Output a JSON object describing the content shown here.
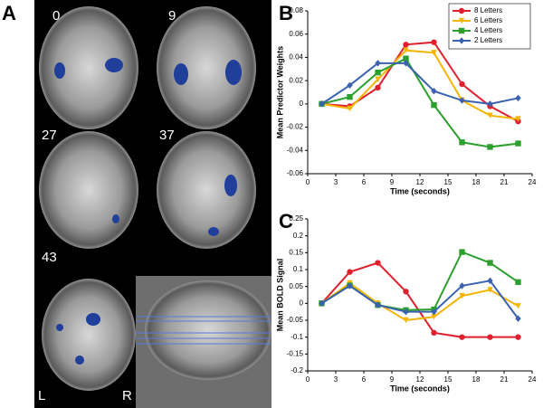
{
  "figure": {
    "panel_labels": [
      "A",
      "B",
      "C"
    ],
    "slice_labels": [
      "0",
      "9",
      "27",
      "37",
      "43"
    ],
    "side_labels": [
      "L",
      "R"
    ]
  },
  "chart_data": [
    {
      "type": "line",
      "xlabel": "Time (seconds)",
      "ylabel": "Mean Predictor Weights",
      "x": [
        1.5,
        4.5,
        7.5,
        10.5,
        13.5,
        16.5,
        19.5,
        22.5
      ],
      "xlim": [
        0,
        24
      ],
      "xticks": [
        0,
        3,
        6,
        9,
        12,
        15,
        18,
        21,
        24
      ],
      "ylim": [
        -0.06,
        0.08
      ],
      "yticks": [
        -0.06,
        -0.04,
        -0.02,
        0,
        0.02,
        0.04,
        0.06,
        0.08
      ],
      "legend": "upper right",
      "series": [
        {
          "name": "8 Letters",
          "color": "#e0202e",
          "marker": "circle",
          "values": [
            0,
            -0.002,
            0.014,
            0.051,
            0.053,
            0.017,
            -0.002,
            -0.015
          ]
        },
        {
          "name": "6 Letters",
          "color": "#f5b400",
          "marker": "triangle",
          "values": [
            0,
            -0.004,
            0.021,
            0.046,
            0.044,
            0.003,
            -0.01,
            -0.013
          ]
        },
        {
          "name": "4 Letters",
          "color": "#2ca02c",
          "marker": "square",
          "values": [
            0,
            0.006,
            0.027,
            0.039,
            -0.001,
            -0.033,
            -0.037,
            -0.034
          ]
        },
        {
          "name": "2 Letters",
          "color": "#3a62b0",
          "marker": "diamond",
          "values": [
            0,
            0.016,
            0.035,
            0.035,
            0.011,
            0.003,
            0,
            0.005
          ]
        }
      ]
    },
    {
      "type": "line",
      "xlabel": "Time (seconds)",
      "ylabel": "Mean BOLD Signal",
      "x": [
        1.5,
        4.5,
        7.5,
        10.5,
        13.5,
        16.5,
        19.5,
        22.5
      ],
      "xlim": [
        0,
        24
      ],
      "xticks": [
        0,
        3,
        6,
        9,
        12,
        15,
        18,
        21,
        24
      ],
      "ylim": [
        -0.2,
        0.25
      ],
      "yticks": [
        -0.2,
        -0.15,
        -0.1,
        -0.05,
        0,
        0.05,
        0.1,
        0.15,
        0.2,
        0.25
      ],
      "series": [
        {
          "color": "#e0202e",
          "marker": "circle",
          "values": [
            0,
            0.093,
            0.12,
            0.035,
            -0.087,
            -0.1,
            -0.1,
            -0.1
          ]
        },
        {
          "color": "#f5b400",
          "marker": "triangle",
          "values": [
            0,
            0.06,
            0,
            -0.05,
            -0.04,
            0.022,
            0.04,
            -0.008
          ]
        },
        {
          "color": "#2ca02c",
          "marker": "square",
          "values": [
            0,
            0.053,
            -0.005,
            -0.02,
            -0.018,
            0.152,
            0.12,
            0.063
          ]
        },
        {
          "color": "#3a62b0",
          "marker": "diamond",
          "values": [
            0,
            0.052,
            -0.005,
            -0.025,
            -0.025,
            0.052,
            0.067,
            -0.045
          ]
        }
      ]
    }
  ]
}
